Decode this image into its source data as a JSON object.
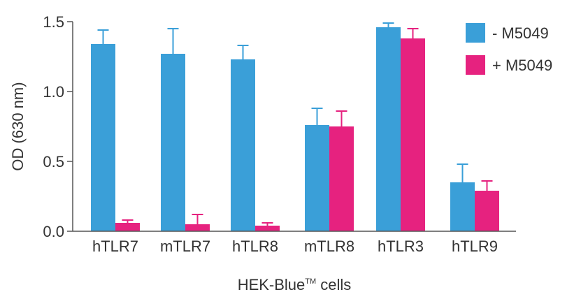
{
  "chart_data": {
    "type": "bar",
    "xlabel": "HEK-Blue",
    "xlabel_superscript": "TM",
    "xlabel_suffix": " cells",
    "ylabel": "OD (630 nm)",
    "ylim": [
      0,
      1.5
    ],
    "yticks": [
      "0.0",
      "0.5",
      "1.0",
      "1.5"
    ],
    "categories": [
      "hTLR7",
      "mTLR7",
      "hTLR8",
      "mTLR8",
      "hTLR3",
      "hTLR9"
    ],
    "series": [
      {
        "name": "- M5049",
        "color": "#3a9fd8",
        "values": [
          1.34,
          1.27,
          1.23,
          0.76,
          1.46,
          0.35
        ],
        "errors": [
          0.1,
          0.18,
          0.1,
          0.12,
          0.03,
          0.13
        ]
      },
      {
        "name": "+ M5049",
        "color": "#e6227f",
        "values": [
          0.06,
          0.05,
          0.04,
          0.75,
          1.38,
          0.29
        ],
        "errors": [
          0.02,
          0.07,
          0.02,
          0.11,
          0.07,
          0.07
        ]
      }
    ],
    "grid": false,
    "legend_position": "top-right"
  }
}
